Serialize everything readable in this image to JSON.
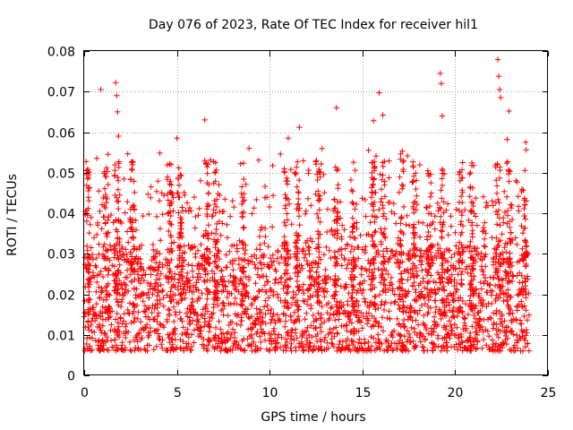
{
  "chart_data": {
    "type": "scatter",
    "title": "Day 076 of 2023, Rate Of TEC Index for receiver hil1",
    "xlabel": "GPS time / hours",
    "ylabel": "ROTI / TECUs",
    "xlim": [
      0,
      25
    ],
    "ylim": [
      0,
      0.08
    ],
    "x_ticks": [
      0,
      5,
      10,
      15,
      20,
      25
    ],
    "x_tick_labels": [
      "0",
      "5",
      "10",
      "15",
      "20",
      "25"
    ],
    "y_ticks": [
      0,
      0.01,
      0.02,
      0.03,
      0.04,
      0.05,
      0.06,
      0.07,
      0.08
    ],
    "y_tick_labels": [
      "0",
      "0.01",
      "0.02",
      "0.03",
      "0.04",
      "0.05",
      "0.06",
      "0.07",
      "0.08"
    ],
    "grid": true,
    "marker": "+",
    "color": "#ff0000",
    "series": [
      {
        "name": "ROTI hil1",
        "data_range_x": [
          0,
          24
        ],
        "bulk_y_range": [
          0.004,
          0.035
        ],
        "notable_points": [
          {
            "x": 0.9,
            "y": 0.0705
          },
          {
            "x": 1.7,
            "y": 0.0722
          },
          {
            "x": 1.75,
            "y": 0.069
          },
          {
            "x": 1.8,
            "y": 0.065
          },
          {
            "x": 1.85,
            "y": 0.059
          },
          {
            "x": 6.5,
            "y": 0.063
          },
          {
            "x": 13.6,
            "y": 0.066
          },
          {
            "x": 15.9,
            "y": 0.0697
          },
          {
            "x": 19.2,
            "y": 0.0745
          },
          {
            "x": 19.25,
            "y": 0.072
          },
          {
            "x": 19.3,
            "y": 0.064
          },
          {
            "x": 22.3,
            "y": 0.0779
          },
          {
            "x": 22.35,
            "y": 0.0738
          },
          {
            "x": 22.4,
            "y": 0.0705
          },
          {
            "x": 22.45,
            "y": 0.0685
          },
          {
            "x": 22.9,
            "y": 0.0652
          },
          {
            "x": 0.25,
            "y": 0.0495
          },
          {
            "x": 5.0,
            "y": 0.0585
          },
          {
            "x": 11.0,
            "y": 0.0585
          },
          {
            "x": 11.6,
            "y": 0.0612
          },
          {
            "x": 15.6,
            "y": 0.0628
          },
          {
            "x": 16.1,
            "y": 0.0642
          },
          {
            "x": 22.8,
            "y": 0.0582
          },
          {
            "x": 23.8,
            "y": 0.0575
          }
        ]
      }
    ]
  }
}
